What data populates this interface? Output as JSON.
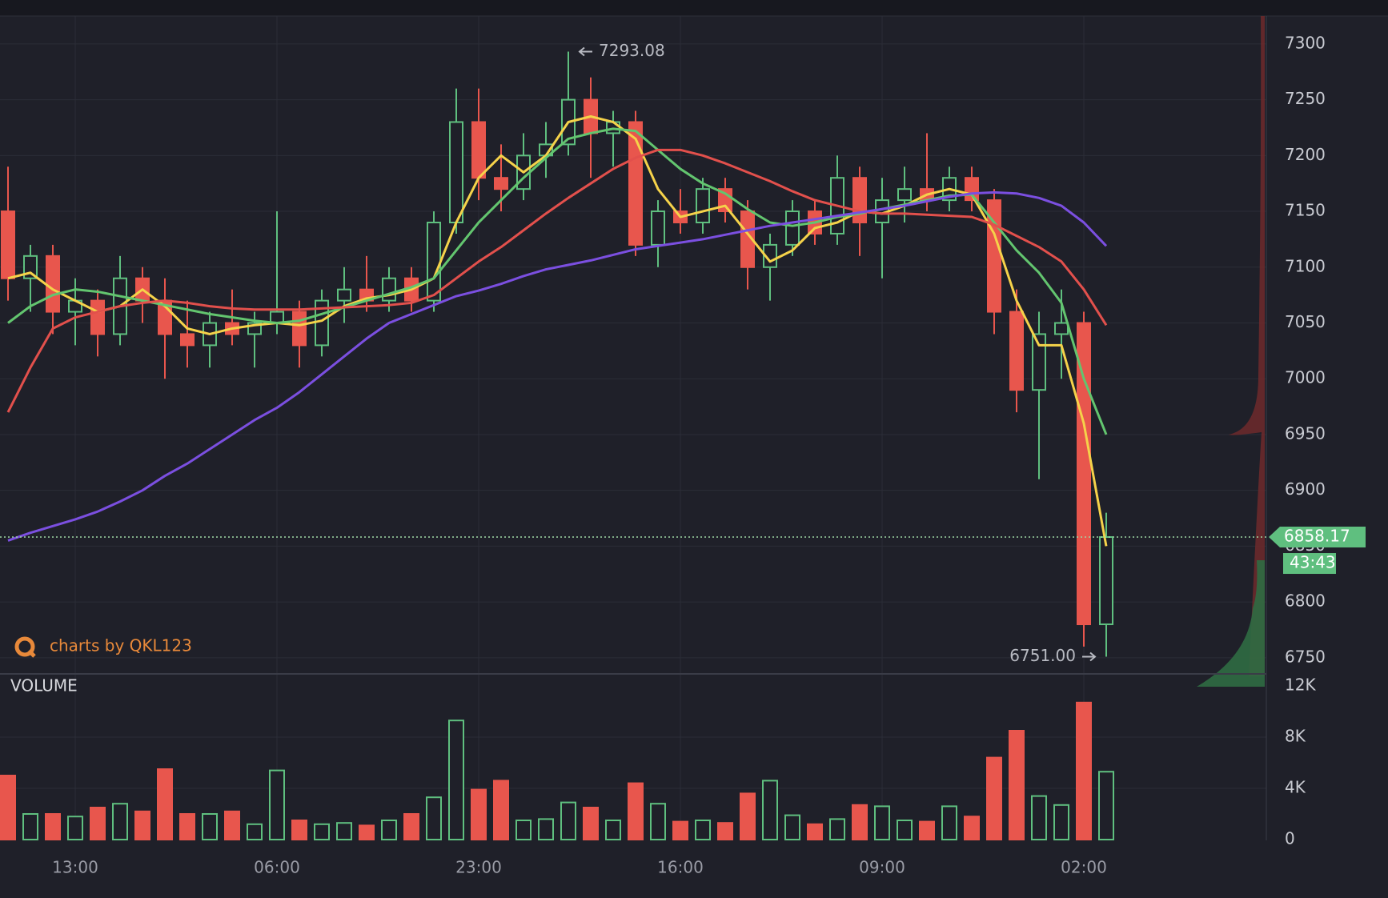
{
  "chart_data": [
    {
      "type": "candlestick",
      "categories": [
        null,
        null,
        null,
        "13:00",
        null,
        null,
        null,
        null,
        null,
        null,
        null,
        null,
        "06:00",
        null,
        null,
        null,
        null,
        null,
        null,
        null,
        null,
        "23:00",
        null,
        null,
        null,
        null,
        null,
        null,
        null,
        null,
        "16:00",
        null,
        null,
        null,
        null,
        null,
        null,
        null,
        null,
        "09:00",
        null,
        null,
        null,
        null,
        null,
        null,
        null,
        null,
        "02:00",
        null
      ],
      "open": [
        7150,
        7090,
        7110,
        7060,
        7070,
        7040,
        7090,
        7070,
        7040,
        7030,
        7050,
        7040,
        7050,
        7060,
        7030,
        7070,
        7080,
        7070,
        7090,
        7070,
        7140,
        7230,
        7180,
        7170,
        7200,
        7210,
        7250,
        7220,
        7230,
        7120,
        7150,
        7140,
        7170,
        7150,
        7100,
        7120,
        7150,
        7130,
        7180,
        7140,
        7160,
        7170,
        7160,
        7180,
        7160,
        7060,
        6990,
        7040,
        7050,
        6780
      ],
      "high": [
        7190,
        7120,
        7120,
        7090,
        7080,
        7110,
        7100,
        7090,
        7070,
        7060,
        7080,
        7060,
        7150,
        7070,
        7080,
        7100,
        7110,
        7100,
        7100,
        7150,
        7260,
        7260,
        7210,
        7220,
        7230,
        7293.08,
        7270,
        7240,
        7240,
        7160,
        7170,
        7180,
        7180,
        7160,
        7130,
        7160,
        7160,
        7200,
        7190,
        7180,
        7190,
        7220,
        7190,
        7190,
        7170,
        7080,
        7060,
        7080,
        7060,
        6880
      ],
      "low": [
        7070,
        7060,
        7040,
        7030,
        7020,
        7030,
        7050,
        7000,
        7010,
        7010,
        7030,
        7010,
        7040,
        7010,
        7020,
        7050,
        7060,
        7060,
        7060,
        7060,
        7130,
        7160,
        7150,
        7160,
        7180,
        7200,
        7180,
        7190,
        7110,
        7100,
        7130,
        7130,
        7140,
        7080,
        7070,
        7110,
        7120,
        7120,
        7110,
        7090,
        7140,
        7150,
        7150,
        7150,
        7040,
        6970,
        6910,
        7000,
        6760,
        6751
      ],
      "close": [
        7090,
        7110,
        7060,
        7070,
        7040,
        7090,
        7070,
        7040,
        7030,
        7050,
        7040,
        7050,
        7060,
        7030,
        7070,
        7080,
        7070,
        7090,
        7070,
        7140,
        7230,
        7180,
        7170,
        7200,
        7210,
        7250,
        7220,
        7230,
        7120,
        7150,
        7140,
        7170,
        7150,
        7100,
        7120,
        7150,
        7130,
        7180,
        7140,
        7160,
        7170,
        7160,
        7180,
        7160,
        7060,
        6990,
        7040,
        7050,
        6780,
        6858.17
      ],
      "up_color": "#5fbf7f",
      "down_color": "#e8564d",
      "series": [
        {
          "color": "#f5d24a",
          "values": [
            7090,
            7095,
            7080,
            7070,
            7060,
            7065,
            7080,
            7065,
            7045,
            7040,
            7045,
            7048,
            7050,
            7048,
            7052,
            7065,
            7072,
            7075,
            7080,
            7090,
            7140,
            7180,
            7200,
            7185,
            7200,
            7230,
            7235,
            7230,
            7215,
            7170,
            7145,
            7150,
            7155,
            7130,
            7105,
            7115,
            7135,
            7140,
            7150,
            7148,
            7155,
            7165,
            7170,
            7165,
            7130,
            7070,
            7030,
            7030,
            6960,
            6850
          ]
        },
        {
          "color": "#63c56f",
          "values": [
            7050,
            7065,
            7075,
            7080,
            7078,
            7074,
            7070,
            7066,
            7062,
            7058,
            7055,
            7052,
            7050,
            7052,
            7058,
            7064,
            7070,
            7076,
            7082,
            7090,
            7115,
            7140,
            7160,
            7180,
            7198,
            7215,
            7220,
            7224,
            7222,
            7205,
            7188,
            7175,
            7166,
            7152,
            7140,
            7137,
            7140,
            7145,
            7148,
            7152,
            7156,
            7160,
            7164,
            7165,
            7140,
            7115,
            7095,
            7068,
            7000,
            6950
          ]
        },
        {
          "color": "#e2504c",
          "values": [
            6970,
            7010,
            7045,
            7055,
            7060,
            7065,
            7068,
            7070,
            7068,
            7065,
            7063,
            7062,
            7062,
            7062,
            7063,
            7064,
            7065,
            7066,
            7068,
            7075,
            7090,
            7105,
            7118,
            7133,
            7148,
            7162,
            7175,
            7188,
            7198,
            7205,
            7205,
            7200,
            7193,
            7185,
            7177,
            7168,
            7160,
            7155,
            7150,
            7148,
            7148,
            7147,
            7146,
            7145,
            7138,
            7128,
            7118,
            7105,
            7080,
            7048
          ]
        },
        {
          "color": "#7b4fe0",
          "values": [
            6855,
            6862,
            6868,
            6874,
            6881,
            6890,
            6900,
            6913,
            6924,
            6937,
            6950,
            6963,
            6974,
            6988,
            7004,
            7020,
            7036,
            7050,
            7058,
            7066,
            7074,
            7079,
            7085,
            7092,
            7098,
            7102,
            7106,
            7111,
            7116,
            7119,
            7122,
            7125,
            7129,
            7133,
            7137,
            7140,
            7143,
            7146,
            7149,
            7152,
            7155,
            7159,
            7163,
            7166,
            7167,
            7166,
            7162,
            7155,
            7140,
            7119
          ]
        }
      ],
      "ylim": [
        6737,
        7325
      ],
      "yticks": [
        6750,
        6800,
        6850,
        6900,
        6950,
        7000,
        7050,
        7100,
        7150,
        7200,
        7250,
        7300
      ],
      "annotations": [
        {
          "text": "7293.08"
        },
        {
          "text": "6751.00"
        }
      ],
      "countdown": "43:43",
      "watermark": "charts by QKL123",
      "grid": true
    },
    {
      "type": "bar",
      "title": "VOLUME",
      "values": [
        5000,
        2000,
        2000,
        1800,
        2500,
        2800,
        2200,
        5500,
        2000,
        2000,
        2200,
        1200,
        5400,
        1500,
        1200,
        1300,
        1100,
        1500,
        2000,
        3300,
        9300,
        3900,
        4600,
        1500,
        1600,
        2900,
        2500,
        1500,
        4400,
        2800,
        1400,
        1500,
        1300,
        3600,
        4600,
        1900,
        1200,
        1600,
        2700,
        2600,
        1500,
        1400,
        2600,
        1800,
        6400,
        8500,
        3400,
        2700,
        10700,
        5300
      ],
      "ylim": [
        0,
        12000
      ],
      "yticks": [
        0,
        {
          "value": 4000,
          "label": "4K"
        },
        {
          "value": 8000,
          "label": "8K"
        },
        {
          "value": 12000,
          "label": "12K"
        }
      ],
      "grid": true
    }
  ]
}
